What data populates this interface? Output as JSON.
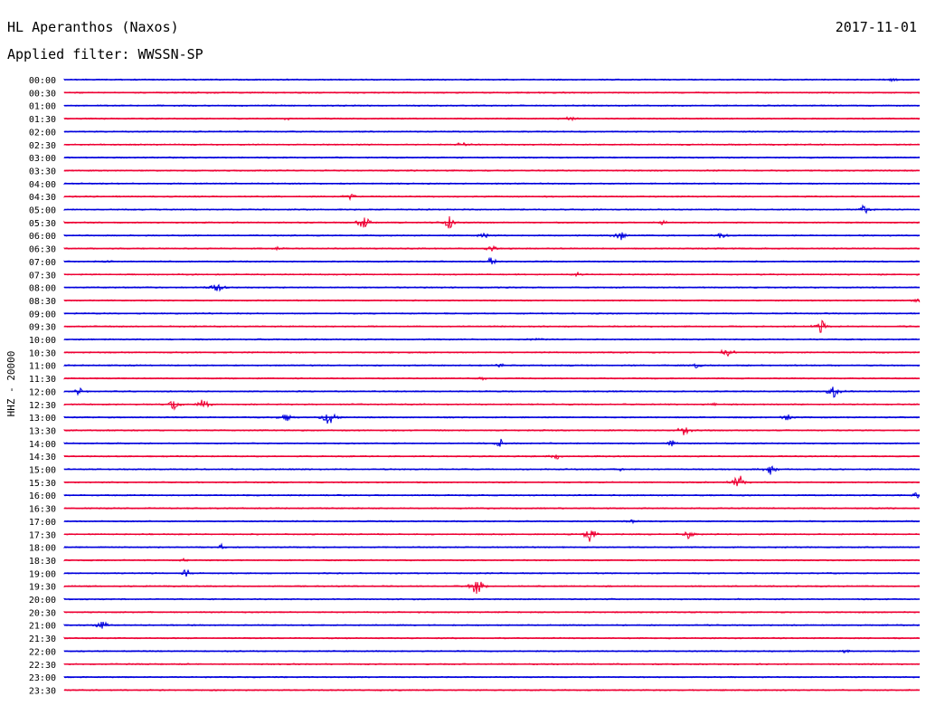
{
  "header": {
    "station": "HL Aperanthos (Naxos)",
    "date": "2017-11-01",
    "filter_label": "Applied filter:",
    "filter_name": "WWSSN-SP"
  },
  "chart_data": {
    "type": "line",
    "title": "HL Aperanthos (Naxos)",
    "ylabel": "HHZ - 20000",
    "x_span_minutes": 30,
    "colors": {
      "even": "#0000dd",
      "odd": "#ee0033"
    },
    "rows": [
      {
        "label": "00:00",
        "events": [
          {
            "x": 0.97,
            "amp": 3
          }
        ]
      },
      {
        "label": "00:30",
        "events": []
      },
      {
        "label": "01:00",
        "events": []
      },
      {
        "label": "01:30",
        "events": [
          {
            "x": 0.59,
            "amp": 4
          },
          {
            "x": 0.26,
            "amp": 2
          }
        ]
      },
      {
        "label": "02:00",
        "events": []
      },
      {
        "label": "02:30",
        "events": [
          {
            "x": 0.465,
            "amp": 3
          }
        ]
      },
      {
        "label": "03:00",
        "events": []
      },
      {
        "label": "03:30",
        "events": []
      },
      {
        "label": "04:00",
        "events": []
      },
      {
        "label": "04:30",
        "events": [
          {
            "x": 0.335,
            "amp": 5
          }
        ]
      },
      {
        "label": "05:00",
        "events": [
          {
            "x": 0.935,
            "amp": 6
          }
        ]
      },
      {
        "label": "05:30",
        "events": [
          {
            "x": 0.35,
            "amp": 9
          },
          {
            "x": 0.45,
            "amp": 8
          },
          {
            "x": 0.7,
            "amp": 3
          }
        ]
      },
      {
        "label": "06:00",
        "events": [
          {
            "x": 0.65,
            "amp": 7
          },
          {
            "x": 0.49,
            "amp": 4
          },
          {
            "x": 0.77,
            "amp": 5
          }
        ]
      },
      {
        "label": "06:30",
        "events": [
          {
            "x": 0.5,
            "amp": 4
          },
          {
            "x": 0.25,
            "amp": 3
          }
        ]
      },
      {
        "label": "07:00",
        "events": [
          {
            "x": 0.5,
            "amp": 6
          },
          {
            "x": 0.05,
            "amp": 2
          }
        ]
      },
      {
        "label": "07:30",
        "events": [
          {
            "x": 0.6,
            "amp": 3
          }
        ]
      },
      {
        "label": "08:00",
        "events": [
          {
            "x": 0.178,
            "amp": 9
          }
        ]
      },
      {
        "label": "08:30",
        "events": [
          {
            "x": 0.998,
            "amp": 4
          }
        ]
      },
      {
        "label": "09:00",
        "events": []
      },
      {
        "label": "09:30",
        "events": [
          {
            "x": 0.885,
            "amp": 8
          }
        ]
      },
      {
        "label": "10:00",
        "events": [
          {
            "x": 0.55,
            "amp": 2
          }
        ]
      },
      {
        "label": "10:30",
        "events": [
          {
            "x": 0.775,
            "amp": 8
          }
        ]
      },
      {
        "label": "11:00",
        "events": [
          {
            "x": 0.51,
            "amp": 3
          },
          {
            "x": 0.74,
            "amp": 4
          }
        ]
      },
      {
        "label": "11:30",
        "events": [
          {
            "x": 0.49,
            "amp": 2
          }
        ]
      },
      {
        "label": "12:00",
        "events": [
          {
            "x": 0.018,
            "amp": 6
          },
          {
            "x": 0.9,
            "amp": 9
          }
        ]
      },
      {
        "label": "12:30",
        "events": [
          {
            "x": 0.128,
            "amp": 7
          },
          {
            "x": 0.163,
            "amp": 9
          },
          {
            "x": 0.76,
            "amp": 2
          }
        ]
      },
      {
        "label": "13:00",
        "events": [
          {
            "x": 0.26,
            "amp": 6
          },
          {
            "x": 0.31,
            "amp": 11
          },
          {
            "x": 0.845,
            "amp": 5
          }
        ]
      },
      {
        "label": "13:30",
        "events": [
          {
            "x": 0.725,
            "amp": 7
          }
        ]
      },
      {
        "label": "14:00",
        "events": [
          {
            "x": 0.51,
            "amp": 5
          },
          {
            "x": 0.71,
            "amp": 4
          }
        ]
      },
      {
        "label": "14:30",
        "events": [
          {
            "x": 0.575,
            "amp": 5
          }
        ]
      },
      {
        "label": "15:00",
        "events": [
          {
            "x": 0.825,
            "amp": 7
          },
          {
            "x": 0.65,
            "amp": 2
          }
        ]
      },
      {
        "label": "15:30",
        "events": [
          {
            "x": 0.788,
            "amp": 14
          }
        ]
      },
      {
        "label": "16:00",
        "events": [
          {
            "x": 0.998,
            "amp": 5
          }
        ]
      },
      {
        "label": "16:30",
        "events": []
      },
      {
        "label": "17:00",
        "events": [
          {
            "x": 0.665,
            "amp": 3
          }
        ]
      },
      {
        "label": "17:30",
        "events": [
          {
            "x": 0.615,
            "amp": 10
          },
          {
            "x": 0.73,
            "amp": 5
          }
        ]
      },
      {
        "label": "18:00",
        "events": [
          {
            "x": 0.185,
            "amp": 4
          }
        ]
      },
      {
        "label": "18:30",
        "events": [
          {
            "x": 0.14,
            "amp": 2
          }
        ]
      },
      {
        "label": "19:00",
        "events": [
          {
            "x": 0.142,
            "amp": 5
          }
        ]
      },
      {
        "label": "19:30",
        "events": [
          {
            "x": 0.483,
            "amp": 17
          }
        ]
      },
      {
        "label": "20:00",
        "events": []
      },
      {
        "label": "20:30",
        "events": []
      },
      {
        "label": "21:00",
        "events": [
          {
            "x": 0.045,
            "amp": 6
          }
        ]
      },
      {
        "label": "21:30",
        "events": []
      },
      {
        "label": "22:00",
        "events": [
          {
            "x": 0.91,
            "amp": 2
          }
        ]
      },
      {
        "label": "22:30",
        "events": []
      },
      {
        "label": "23:00",
        "events": []
      },
      {
        "label": "23:30",
        "events": []
      }
    ]
  }
}
